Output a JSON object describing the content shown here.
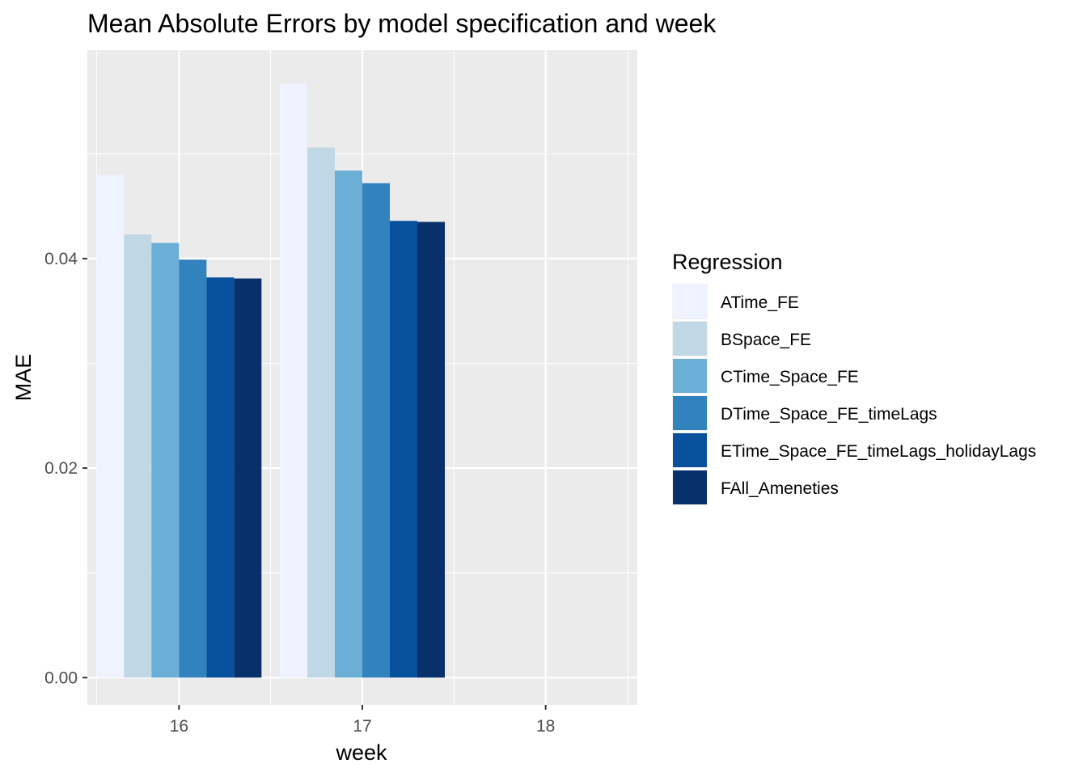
{
  "chart_data": {
    "type": "bar",
    "title": "Mean Absolute Errors by model specification and week",
    "xlabel": "week",
    "ylabel": "MAE",
    "categories": [
      "16",
      "17",
      "18"
    ],
    "x_range": [
      15.5,
      18.5
    ],
    "ylim": [
      -0.0026,
      0.0599
    ],
    "y_ticks": [
      0.0,
      0.02,
      0.04
    ],
    "y_tick_labels": [
      "0.00",
      "0.02",
      "0.04"
    ],
    "grid": true,
    "legend": {
      "title": "Regression",
      "position": "right"
    },
    "series": [
      {
        "name": "ATime_FE",
        "color": "#eff3ff",
        "values": [
          0.048,
          0.0567,
          null
        ]
      },
      {
        "name": "BSpace_FE",
        "color": "#c0d7e6",
        "values": [
          0.0423,
          0.0506,
          null
        ]
      },
      {
        "name": "CTime_Space_FE",
        "color": "#6baed6",
        "values": [
          0.0415,
          0.0484,
          null
        ]
      },
      {
        "name": "DTime_Space_FE_timeLags",
        "color": "#3182bd",
        "values": [
          0.0399,
          0.0472,
          null
        ]
      },
      {
        "name": "ETime_Space_FE_timeLags_holidayLags",
        "color": "#08519c",
        "values": [
          0.0382,
          0.0436,
          null
        ]
      },
      {
        "name": "FAll_Ameneties",
        "color": "#08306b",
        "values": [
          0.0381,
          0.0435,
          null
        ]
      }
    ]
  }
}
